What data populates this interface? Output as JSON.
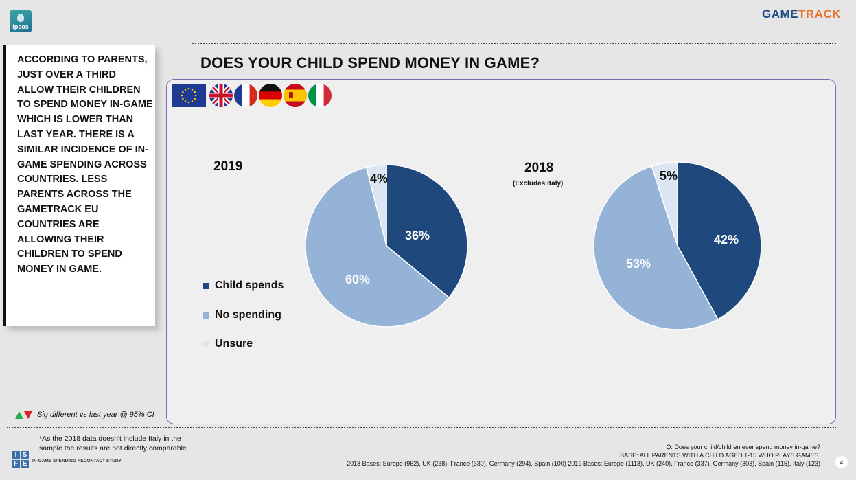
{
  "header": {
    "ipsos_logo": "Ipsos",
    "brand_part1": "GAME",
    "brand_part2": "TRACK"
  },
  "side_text": "ACCORDING TO PARENTS, JUST OVER A THIRD ALLOW THEIR CHILDREN TO SPEND MONEY IN-GAME WHICH IS LOWER THAN LAST YEAR. THERE IS A SIMILAR INCIDENCE OF IN-GAME SPENDING ACROSS COUNTRIES. LESS PARENTS ACROSS THE GAMETRACK EU COUNTRIES ARE ALLOWING THEIR CHILDREN TO SPEND MONEY IN GAME.",
  "title": "DOES YOUR CHILD SPEND MONEY IN GAME?",
  "flags": [
    "eu-flag-icon",
    "uk-flag-icon",
    "france-flag-icon",
    "germany-flag-icon",
    "spain-flag-icon",
    "italy-flag-icon"
  ],
  "colors": {
    "child_spends": "#1f497d",
    "no_spending": "#95b3d7",
    "unsure": "#dce6f2"
  },
  "chart_data": [
    {
      "type": "pie",
      "title": "2019",
      "subtitle": "",
      "categories": [
        "Child spends",
        "No spending",
        "Unsure"
      ],
      "values": [
        36,
        60,
        4
      ],
      "labels": [
        "36%",
        "60%",
        "4%"
      ]
    },
    {
      "type": "pie",
      "title": "2018",
      "subtitle": "(Excludes Italy)",
      "categories": [
        "Child spends",
        "No spending",
        "Unsure"
      ],
      "values": [
        42,
        53,
        5
      ],
      "labels": [
        "42%",
        "53%",
        "5%"
      ]
    }
  ],
  "legend": [
    "Child spends",
    "No spending",
    "Unsure"
  ],
  "sig_note": "Sig different vs last year @ 95% CI",
  "footnote": "*As the 2018 data doesn't include Italy in the sample the results are not directly comparable",
  "isfe_logo": [
    "I",
    "S",
    "F",
    "E"
  ],
  "study_label": "IN-GAME SPENDING RECONTACT STUDY",
  "source": {
    "question": "Q: Does your child/children ever spend money in-game?",
    "base": "BASE: ALL PARENTS WITH A CHILD AGED 1-15 WHO PLAYS GAMES.",
    "bases": "2018 Bases: Europe (962), UK (238), France (330), Germany (294), Spain (100) 2019 Bases: Europe (1118), UK (240), France (337), Germany (303), Spain (115), Italy (123)"
  },
  "page_number": "4"
}
